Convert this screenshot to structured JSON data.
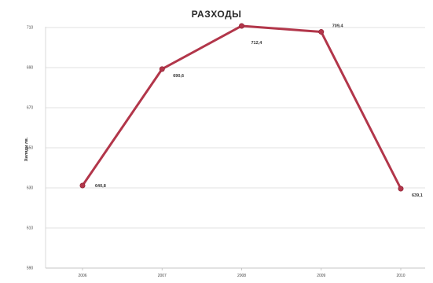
{
  "chart_data": {
    "type": "line",
    "title": "РАЗХОДЫ",
    "xlabel": "",
    "ylabel": "Хиляди лв.",
    "categories": [
      "2006",
      "2007",
      "2008",
      "2009",
      "2010"
    ],
    "series": [
      {
        "values": [
          640.8,
          690.6,
          712.4,
          709.4,
          639.1
        ],
        "labels": [
          "640,8",
          "690,6",
          "712,4",
          "709,4",
          "639,1"
        ],
        "color": "#b2364a"
      }
    ],
    "ylim": [
      590,
      690
    ],
    "yticks": [
      "590",
      "610",
      "630",
      "650",
      "670",
      "690",
      "710"
    ],
    "grid": true,
    "legend": "none"
  }
}
